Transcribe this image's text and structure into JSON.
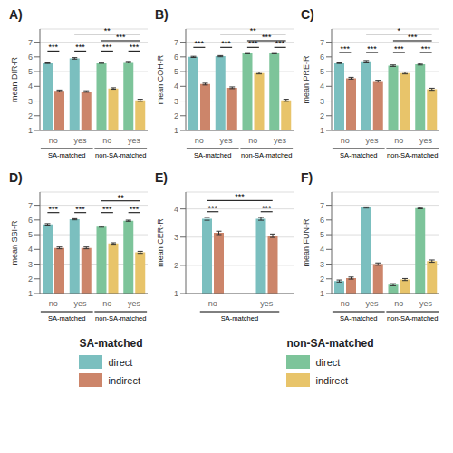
{
  "chart_data": [
    {
      "type": "bar",
      "title": "A)",
      "y_label": "mean DIR-R",
      "categories": [
        "no",
        "yes",
        "no",
        "yes"
      ],
      "groups": [
        {
          "label": "SA-matched",
          "from": 0,
          "to": 1
        },
        {
          "label": "non-SA-matched",
          "from": 2,
          "to": 3
        }
      ],
      "series": [
        {
          "name": "direct",
          "values": [
            5.6,
            5.9,
            5.6,
            5.65
          ],
          "errors": [
            0.05,
            0.05,
            0.04,
            0.04
          ],
          "colors": [
            "#7BBFBF",
            "#7BBFBF",
            "#7DC49A",
            "#7DC49A"
          ]
        },
        {
          "name": "indirect",
          "values": [
            3.7,
            3.65,
            3.85,
            3.05
          ],
          "errors": [
            0.05,
            0.05,
            0.05,
            0.07
          ],
          "colors": [
            "#CC856A",
            "#CC856A",
            "#E8C46A",
            "#E8C46A"
          ]
        }
      ],
      "ylim": [
        1,
        7.9
      ],
      "yticks": [
        1,
        2,
        3,
        4,
        5,
        6,
        7
      ],
      "grid": true,
      "annotations": [
        {
          "text": "***",
          "y": 6.4,
          "from": 0,
          "to": 0
        },
        {
          "text": "***",
          "y": 6.4,
          "from": 1,
          "to": 1
        },
        {
          "text": "***",
          "y": 6.4,
          "from": 2,
          "to": 2
        },
        {
          "text": "***",
          "y": 6.4,
          "from": 3,
          "to": 3
        },
        {
          "text": "**",
          "y": 7.55,
          "from": 1,
          "to": 3
        },
        {
          "text": "***",
          "y": 7.1,
          "from": 2,
          "to": 3
        }
      ]
    },
    {
      "type": "bar",
      "title": "B)",
      "y_label": "mean COH-R",
      "categories": [
        "no",
        "yes",
        "no",
        "yes"
      ],
      "groups": [
        {
          "label": "SA-matched",
          "from": 0,
          "to": 1
        },
        {
          "label": "non-SA-matched",
          "from": 2,
          "to": 3
        }
      ],
      "series": [
        {
          "name": "direct",
          "values": [
            6.0,
            6.05,
            6.25,
            6.25
          ],
          "errors": [
            0.04,
            0.04,
            0.04,
            0.04
          ],
          "colors": [
            "#7BBFBF",
            "#7BBFBF",
            "#7DC49A",
            "#7DC49A"
          ]
        },
        {
          "name": "indirect",
          "values": [
            4.15,
            3.9,
            4.9,
            3.05
          ],
          "errors": [
            0.06,
            0.06,
            0.06,
            0.07
          ],
          "colors": [
            "#CC856A",
            "#CC856A",
            "#E8C46A",
            "#E8C46A"
          ]
        }
      ],
      "ylim": [
        1,
        7.9
      ],
      "yticks": [
        1,
        2,
        3,
        4,
        5,
        6,
        7
      ],
      "grid": true,
      "annotations": [
        {
          "text": "***",
          "y": 6.65,
          "from": 0,
          "to": 0
        },
        {
          "text": "***",
          "y": 6.65,
          "from": 1,
          "to": 1
        },
        {
          "text": "***",
          "y": 6.65,
          "from": 2,
          "to": 2
        },
        {
          "text": "***",
          "y": 6.65,
          "from": 3,
          "to": 3
        },
        {
          "text": "**",
          "y": 7.55,
          "from": 1,
          "to": 3
        },
        {
          "text": "***",
          "y": 7.1,
          "from": 2,
          "to": 3
        }
      ]
    },
    {
      "type": "bar",
      "title": "C)",
      "y_label": "mean PRE-R",
      "categories": [
        "no",
        "yes",
        "no",
        "yes"
      ],
      "groups": [
        {
          "label": "SA-matched",
          "from": 0,
          "to": 1
        },
        {
          "label": "non-SA-matched",
          "from": 2,
          "to": 3
        }
      ],
      "series": [
        {
          "name": "direct",
          "values": [
            5.6,
            5.7,
            5.4,
            5.5
          ],
          "errors": [
            0.05,
            0.05,
            0.05,
            0.05
          ],
          "colors": [
            "#7BBFBF",
            "#7BBFBF",
            "#7DC49A",
            "#7DC49A"
          ]
        },
        {
          "name": "indirect",
          "values": [
            4.55,
            4.35,
            4.9,
            3.8
          ],
          "errors": [
            0.06,
            0.06,
            0.06,
            0.07
          ],
          "colors": [
            "#CC856A",
            "#CC856A",
            "#E8C46A",
            "#E8C46A"
          ]
        }
      ],
      "ylim": [
        1,
        7.9
      ],
      "yticks": [
        1,
        2,
        3,
        4,
        5,
        6,
        7
      ],
      "grid": true,
      "annotations": [
        {
          "text": "***",
          "y": 6.3,
          "from": 0,
          "to": 0
        },
        {
          "text": "***",
          "y": 6.3,
          "from": 1,
          "to": 1
        },
        {
          "text": "***",
          "y": 6.3,
          "from": 2,
          "to": 2
        },
        {
          "text": "***",
          "y": 6.3,
          "from": 3,
          "to": 3
        },
        {
          "text": "*",
          "y": 7.55,
          "from": 1,
          "to": 3
        },
        {
          "text": "***",
          "y": 7.1,
          "from": 2,
          "to": 3
        }
      ]
    },
    {
      "type": "bar",
      "title": "D)",
      "y_label": "mean SSI-R",
      "categories": [
        "no",
        "yes",
        "no",
        "yes"
      ],
      "groups": [
        {
          "label": "SA-matched",
          "from": 0,
          "to": 1
        },
        {
          "label": "non-SA-matched",
          "from": 2,
          "to": 3
        }
      ],
      "series": [
        {
          "name": "direct",
          "values": [
            5.7,
            6.05,
            5.55,
            5.95
          ],
          "errors": [
            0.05,
            0.04,
            0.04,
            0.04
          ],
          "colors": [
            "#7BBFBF",
            "#7BBFBF",
            "#7DC49A",
            "#7DC49A"
          ]
        },
        {
          "name": "indirect",
          "values": [
            4.1,
            4.1,
            4.4,
            3.8
          ],
          "errors": [
            0.06,
            0.06,
            0.05,
            0.07
          ],
          "colors": [
            "#CC856A",
            "#CC856A",
            "#E8C46A",
            "#E8C46A"
          ]
        }
      ],
      "ylim": [
        1,
        7.9
      ],
      "yticks": [
        1,
        2,
        3,
        4,
        5,
        6,
        7
      ],
      "grid": true,
      "annotations": [
        {
          "text": "***",
          "y": 6.5,
          "from": 0,
          "to": 0
        },
        {
          "text": "***",
          "y": 6.5,
          "from": 1,
          "to": 1
        },
        {
          "text": "***",
          "y": 6.5,
          "from": 2,
          "to": 2
        },
        {
          "text": "***",
          "y": 6.5,
          "from": 3,
          "to": 3
        },
        {
          "text": "**",
          "y": 7.3,
          "from": 2,
          "to": 3
        }
      ]
    },
    {
      "type": "bar",
      "title": "E)",
      "y_label": "mean CER-R",
      "categories": [
        "no",
        "yes"
      ],
      "groups": [
        {
          "label": "SA-matched",
          "from": 0,
          "to": 1
        }
      ],
      "series": [
        {
          "name": "direct",
          "values": [
            3.65,
            3.65
          ],
          "errors": [
            0.05,
            0.05
          ],
          "colors": [
            "#7BBFBF",
            "#7BBFBF"
          ]
        },
        {
          "name": "indirect",
          "values": [
            3.15,
            3.05
          ],
          "errors": [
            0.06,
            0.06
          ],
          "colors": [
            "#CC856A",
            "#CC856A"
          ]
        }
      ],
      "ylim": [
        1,
        4.6
      ],
      "yticks": [
        1,
        2,
        3,
        4
      ],
      "grid": true,
      "annotations": [
        {
          "text": "***",
          "y": 3.9,
          "from": 0,
          "to": 0
        },
        {
          "text": "***",
          "y": 3.9,
          "from": 1,
          "to": 1
        },
        {
          "text": "***",
          "y": 4.3,
          "from": 0,
          "to": 1
        }
      ]
    },
    {
      "type": "bar",
      "title": "F)",
      "y_label": "mean FUN-R",
      "categories": [
        "no",
        "yes",
        "no",
        "yes"
      ],
      "groups": [
        {
          "label": "SA-matched",
          "from": 0,
          "to": 1
        },
        {
          "label": "non-SA-matched",
          "from": 2,
          "to": 3
        }
      ],
      "series": [
        {
          "name": "direct",
          "values": [
            1.85,
            6.85,
            1.6,
            6.8
          ],
          "errors": [
            0.07,
            0.04,
            0.07,
            0.04
          ],
          "colors": [
            "#7BBFBF",
            "#7BBFBF",
            "#7DC49A",
            "#7DC49A"
          ]
        },
        {
          "name": "indirect",
          "values": [
            2.05,
            3.0,
            1.95,
            3.2
          ],
          "errors": [
            0.07,
            0.08,
            0.07,
            0.08
          ],
          "colors": [
            "#CC856A",
            "#CC856A",
            "#E8C46A",
            "#E8C46A"
          ]
        }
      ],
      "ylim": [
        1,
        7.9
      ],
      "yticks": [
        1,
        2,
        3,
        4,
        5,
        6,
        7
      ],
      "grid": true,
      "annotations": []
    }
  ],
  "legend_groups": [
    {
      "title": "SA-matched",
      "entries": [
        {
          "name": "direct",
          "color": "#7BBFBF"
        },
        {
          "name": "indirect",
          "color": "#CC856A"
        }
      ]
    },
    {
      "title": "non-SA-matched",
      "entries": [
        {
          "name": "direct",
          "color": "#7DC49A"
        },
        {
          "name": "indirect",
          "color": "#E8C46A"
        }
      ]
    }
  ]
}
